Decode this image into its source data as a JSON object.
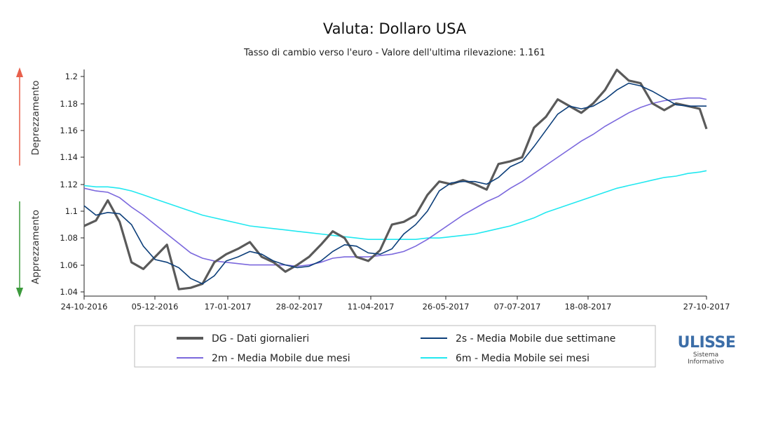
{
  "chart_data": {
    "type": "line",
    "title": "Valuta: Dollaro USA",
    "subtitle": "Tasso di cambio verso l'euro - Valore dell'ultima rilevazione: 1.161",
    "side_labels": {
      "upper": "Deprezzamento",
      "lower": "Apprezzamento"
    },
    "x_tick_labels": [
      "24-10-2016",
      "05-12-2016",
      "17-01-2017",
      "28-02-2017",
      "11-04-2017",
      "26-05-2017",
      "07-07-2017",
      "18-08-2017",
      "27-10-2017"
    ],
    "y_tick_labels": [
      "1.2",
      "1.18",
      "1.16",
      "1.14",
      "1.12",
      "1.1",
      "1.08",
      "1.06",
      "1.04"
    ],
    "ylim": [
      1.037,
      1.206
    ],
    "grid": false,
    "legend_position": "bottom",
    "x": [
      "24-10-2016",
      "31-10-2016",
      "07-11-2016",
      "14-11-2016",
      "21-11-2016",
      "28-11-2016",
      "05-12-2016",
      "12-12-2016",
      "19-12-2016",
      "26-12-2016",
      "02-01-2017",
      "09-01-2017",
      "16-01-2017",
      "23-01-2017",
      "30-01-2017",
      "06-02-2017",
      "13-02-2017",
      "20-02-2017",
      "27-02-2017",
      "06-03-2017",
      "13-03-2017",
      "20-03-2017",
      "27-03-2017",
      "03-04-2017",
      "10-04-2017",
      "17-04-2017",
      "24-04-2017",
      "01-05-2017",
      "08-05-2017",
      "15-05-2017",
      "22-05-2017",
      "29-05-2017",
      "05-06-2017",
      "12-06-2017",
      "19-06-2017",
      "26-06-2017",
      "03-07-2017",
      "10-07-2017",
      "17-07-2017",
      "24-07-2017",
      "31-07-2017",
      "07-08-2017",
      "14-08-2017",
      "21-08-2017",
      "28-08-2017",
      "04-09-2017",
      "11-09-2017",
      "18-09-2017",
      "25-09-2017",
      "02-10-2017",
      "09-10-2017",
      "16-10-2017",
      "23-10-2017",
      "27-10-2017"
    ],
    "series": [
      {
        "name": "DG - Dati giornalieri",
        "color": "#5a5a5a",
        "values": [
          1.089,
          1.093,
          1.108,
          1.092,
          1.062,
          1.057,
          1.066,
          1.075,
          1.042,
          1.043,
          1.046,
          1.062,
          1.068,
          1.072,
          1.077,
          1.066,
          1.062,
          1.055,
          1.06,
          1.066,
          1.075,
          1.085,
          1.08,
          1.066,
          1.063,
          1.071,
          1.09,
          1.092,
          1.097,
          1.112,
          1.122,
          1.12,
          1.123,
          1.12,
          1.116,
          1.135,
          1.137,
          1.14,
          1.162,
          1.17,
          1.183,
          1.178,
          1.173,
          1.18,
          1.19,
          1.205,
          1.197,
          1.195,
          1.18,
          1.175,
          1.18,
          1.178,
          1.176,
          1.161
        ]
      },
      {
        "name": "2s - Media Mobile due settimane",
        "color": "#0d3f7a",
        "values": [
          1.104,
          1.097,
          1.099,
          1.098,
          1.09,
          1.074,
          1.064,
          1.062,
          1.058,
          1.05,
          1.046,
          1.052,
          1.063,
          1.066,
          1.07,
          1.068,
          1.063,
          1.06,
          1.058,
          1.059,
          1.063,
          1.07,
          1.075,
          1.074,
          1.069,
          1.068,
          1.072,
          1.083,
          1.09,
          1.1,
          1.115,
          1.121,
          1.122,
          1.122,
          1.12,
          1.125,
          1.133,
          1.137,
          1.148,
          1.16,
          1.172,
          1.178,
          1.176,
          1.178,
          1.183,
          1.19,
          1.195,
          1.193,
          1.189,
          1.184,
          1.179,
          1.178,
          1.178,
          1.178
        ]
      },
      {
        "name": "2m - Media Mobile due mesi",
        "color": "#7b68dd",
        "values": [
          1.117,
          1.115,
          1.114,
          1.11,
          1.103,
          1.097,
          1.09,
          1.083,
          1.076,
          1.069,
          1.065,
          1.063,
          1.062,
          1.061,
          1.06,
          1.06,
          1.06,
          1.06,
          1.059,
          1.06,
          1.062,
          1.065,
          1.066,
          1.066,
          1.066,
          1.067,
          1.068,
          1.07,
          1.074,
          1.079,
          1.085,
          1.091,
          1.097,
          1.102,
          1.107,
          1.111,
          1.117,
          1.122,
          1.128,
          1.134,
          1.14,
          1.146,
          1.152,
          1.157,
          1.163,
          1.168,
          1.173,
          1.177,
          1.18,
          1.182,
          1.183,
          1.184,
          1.184,
          1.183
        ]
      },
      {
        "name": "6m - Media Mobile sei mesi",
        "color": "#22e8f0",
        "values": [
          1.119,
          1.118,
          1.118,
          1.117,
          1.115,
          1.112,
          1.109,
          1.106,
          1.103,
          1.1,
          1.097,
          1.095,
          1.093,
          1.091,
          1.089,
          1.088,
          1.087,
          1.086,
          1.085,
          1.084,
          1.083,
          1.082,
          1.081,
          1.08,
          1.079,
          1.079,
          1.079,
          1.079,
          1.079,
          1.08,
          1.08,
          1.081,
          1.082,
          1.083,
          1.085,
          1.087,
          1.089,
          1.092,
          1.095,
          1.099,
          1.102,
          1.105,
          1.108,
          1.111,
          1.114,
          1.117,
          1.119,
          1.121,
          1.123,
          1.125,
          1.126,
          1.128,
          1.129,
          1.13
        ]
      }
    ]
  },
  "legend": {
    "items": [
      {
        "label": "DG - Dati giornalieri",
        "color": "#5a5a5a",
        "weight": 4
      },
      {
        "label": "2s - Media Mobile due settimane",
        "color": "#0d3f7a",
        "weight": 2
      },
      {
        "label": "2m - Media Mobile due mesi",
        "color": "#7b68dd",
        "weight": 2
      },
      {
        "label": "6m - Media Mobile sei mesi",
        "color": "#22e8f0",
        "weight": 2
      }
    ]
  },
  "colors": {
    "arrow_up": "#e8604c",
    "arrow_down": "#3c9a3c",
    "logo": "#3c6ea8"
  },
  "logo": {
    "name": "ULISSE",
    "line1": "Sistema",
    "line2": "Informativo"
  }
}
